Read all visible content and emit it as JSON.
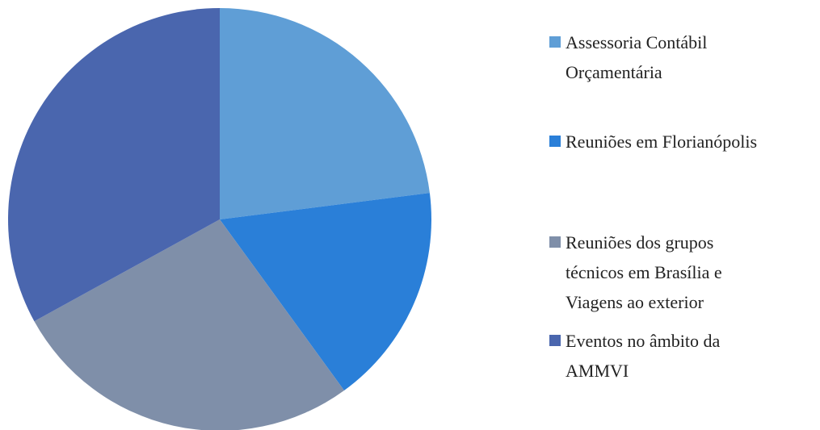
{
  "chart_data": {
    "type": "pie",
    "categories": [
      "Assessoria Contábil Orçamentária",
      "Reuniões em Florianópolis",
      "Reuniões dos grupos técnicos em Brasília e Viagens ao exterior",
      "Eventos no âmbito da AMMVI"
    ],
    "values": [
      23,
      17,
      27,
      33
    ],
    "colors": [
      "#5f9ed6",
      "#2a7fd8",
      "#7f8fa9",
      "#4a66ae"
    ],
    "legend": "right"
  }
}
